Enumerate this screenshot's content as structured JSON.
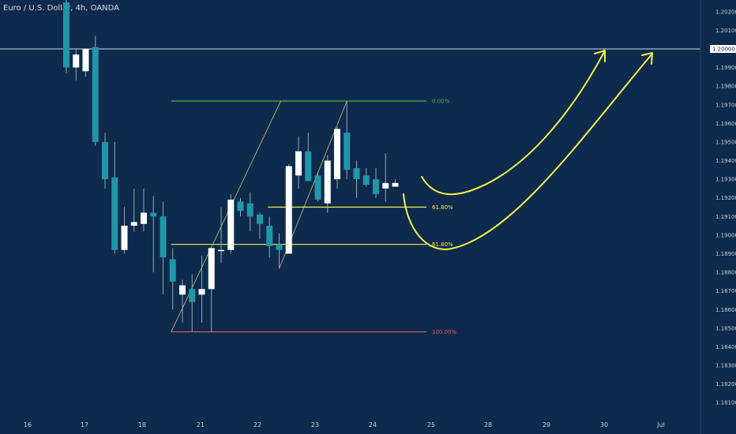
{
  "header": {
    "title": "Euro / U.S. Dollar, 4h, OANDA"
  },
  "colors": {
    "background": "#0e2a4d",
    "bull": "#ffffff",
    "bear": "#2196a6",
    "wick": "#9aa6b5",
    "fib_top": "#4caf50",
    "fib_mid": "#f2f24a",
    "fib_bottom": "#e05a5a",
    "arrow": "#f2f24a",
    "hline": "#8fa1b8",
    "diag": "#c9c97a"
  },
  "chart_data": {
    "type": "candlestick",
    "y_axis": {
      "ylim": [
        1.1805,
        1.2025
      ],
      "ticks": [
        "1.20200",
        "1.20100",
        "1.20000",
        "1.19900",
        "1.19800",
        "1.19700",
        "1.19600",
        "1.19500",
        "1.19400",
        "1.19300",
        "1.19200",
        "1.19100",
        "1.19000",
        "1.18900",
        "1.18800",
        "1.18700",
        "1.18600",
        "1.18500",
        "1.18400",
        "1.18300",
        "1.18200",
        "1.18100"
      ],
      "highlight_tick": "1.20000"
    },
    "x_axis": {
      "ticks": [
        "16",
        "17",
        "18",
        "21",
        "22",
        "23",
        "24",
        "25",
        "28",
        "29",
        "30",
        "Jul"
      ]
    },
    "horizontal_line": 1.2,
    "candles": [
      {
        "o": 1.2025,
        "h": 1.203,
        "l": 1.1987,
        "c": 1.199
      },
      {
        "o": 1.199,
        "h": 1.2,
        "l": 1.1983,
        "c": 1.1997
      },
      {
        "o": 1.1988,
        "h": 1.1998,
        "l": 1.1985,
        "c": 1.2
      },
      {
        "o": 1.2001,
        "h": 1.2007,
        "l": 1.1948,
        "c": 1.195
      },
      {
        "o": 1.195,
        "h": 1.1955,
        "l": 1.1925,
        "c": 1.193
      },
      {
        "o": 1.1931,
        "h": 1.195,
        "l": 1.189,
        "c": 1.1892
      },
      {
        "o": 1.1892,
        "h": 1.1915,
        "l": 1.189,
        "c": 1.1905
      },
      {
        "o": 1.1905,
        "h": 1.1925,
        "l": 1.1902,
        "c": 1.1907
      },
      {
        "o": 1.1906,
        "h": 1.1925,
        "l": 1.1902,
        "c": 1.1912
      },
      {
        "o": 1.1912,
        "h": 1.1921,
        "l": 1.188,
        "c": 1.191
      },
      {
        "o": 1.191,
        "h": 1.1918,
        "l": 1.1868,
        "c": 1.1888
      },
      {
        "o": 1.1887,
        "h": 1.1893,
        "l": 1.186,
        "c": 1.1875
      },
      {
        "o": 1.1868,
        "h": 1.1876,
        "l": 1.1853,
        "c": 1.1873
      },
      {
        "o": 1.1871,
        "h": 1.1879,
        "l": 1.1848,
        "c": 1.1864
      },
      {
        "o": 1.1868,
        "h": 1.1889,
        "l": 1.1853,
        "c": 1.1871
      },
      {
        "o": 1.1871,
        "h": 1.1893,
        "l": 1.1848,
        "c": 1.1893
      },
      {
        "o": 1.1892,
        "h": 1.1915,
        "l": 1.1885,
        "c": 1.1892
      },
      {
        "o": 1.1892,
        "h": 1.1922,
        "l": 1.189,
        "c": 1.1919
      },
      {
        "o": 1.1918,
        "h": 1.192,
        "l": 1.191,
        "c": 1.1913
      },
      {
        "o": 1.1917,
        "h": 1.1923,
        "l": 1.1902,
        "c": 1.191
      },
      {
        "o": 1.1911,
        "h": 1.1912,
        "l": 1.1898,
        "c": 1.1906
      },
      {
        "o": 1.1905,
        "h": 1.191,
        "l": 1.1888,
        "c": 1.1894
      },
      {
        "o": 1.1895,
        "h": 1.1901,
        "l": 1.1882,
        "c": 1.1892
      },
      {
        "o": 1.189,
        "h": 1.1938,
        "l": 1.189,
        "c": 1.1937
      },
      {
        "o": 1.1932,
        "h": 1.1953,
        "l": 1.1925,
        "c": 1.1945
      },
      {
        "o": 1.1945,
        "h": 1.1955,
        "l": 1.193,
        "c": 1.1929
      },
      {
        "o": 1.1932,
        "h": 1.1934,
        "l": 1.1918,
        "c": 1.1919
      },
      {
        "o": 1.1917,
        "h": 1.1943,
        "l": 1.1912,
        "c": 1.194
      },
      {
        "o": 1.193,
        "h": 1.1958,
        "l": 1.1925,
        "c": 1.1957
      },
      {
        "o": 1.1955,
        "h": 1.1972,
        "l": 1.193,
        "c": 1.1935
      },
      {
        "o": 1.1936,
        "h": 1.194,
        "l": 1.192,
        "c": 1.193
      },
      {
        "o": 1.1932,
        "h": 1.1936,
        "l": 1.1926,
        "c": 1.1927
      },
      {
        "o": 1.193,
        "h": 1.1936,
        "l": 1.192,
        "c": 1.1922
      },
      {
        "o": 1.1925,
        "h": 1.1944,
        "l": 1.1918,
        "c": 1.1928
      },
      {
        "o": 1.1926,
        "h": 1.193,
        "l": 1.1926,
        "c": 1.1928
      }
    ],
    "fib_levels": [
      {
        "label": "0.00%",
        "price": 1.1972,
        "color": "#4caf50"
      },
      {
        "label": "61.80%",
        "price": 1.1915,
        "color": "#f2f24a"
      },
      {
        "label": "61.80%",
        "price": 1.1895,
        "color": "#f2f24a"
      },
      {
        "label": "100.00%",
        "price": 1.1848,
        "color": "#e05a5a"
      }
    ]
  }
}
